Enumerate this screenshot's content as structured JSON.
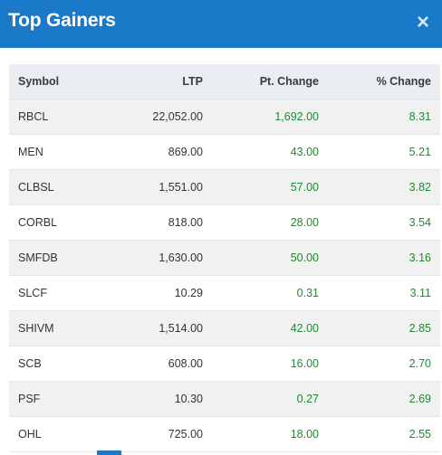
{
  "header": {
    "title": "Top Gainers",
    "close_label": "×"
  },
  "table": {
    "columns": [
      "Symbol",
      "LTP",
      "Pt. Change",
      "% Change"
    ],
    "rows": [
      {
        "symbol": "RBCL",
        "ltp": "22,052.00",
        "pt_change": "1,692.00",
        "pct_change": "8.31"
      },
      {
        "symbol": "MEN",
        "ltp": "869.00",
        "pt_change": "43.00",
        "pct_change": "5.21"
      },
      {
        "symbol": "CLBSL",
        "ltp": "1,551.00",
        "pt_change": "57.00",
        "pct_change": "3.82"
      },
      {
        "symbol": "CORBL",
        "ltp": "818.00",
        "pt_change": "28.00",
        "pct_change": "3.54"
      },
      {
        "symbol": "SMFDB",
        "ltp": "1,630.00",
        "pt_change": "50.00",
        "pct_change": "3.16"
      },
      {
        "symbol": "SLCF",
        "ltp": "10.29",
        "pt_change": "0.31",
        "pct_change": "3.11"
      },
      {
        "symbol": "SHIVM",
        "ltp": "1,514.00",
        "pt_change": "42.00",
        "pct_change": "2.85"
      },
      {
        "symbol": "SCB",
        "ltp": "608.00",
        "pt_change": "16.00",
        "pct_change": "2.70"
      },
      {
        "symbol": "PSF",
        "ltp": "10.30",
        "pt_change": "0.27",
        "pct_change": "2.69"
      },
      {
        "symbol": "OHL",
        "ltp": "725.00",
        "pt_change": "18.00",
        "pct_change": "2.55"
      }
    ]
  },
  "colors": {
    "header_bg": "#1a79c9",
    "positive": "#1e8b2f"
  },
  "icons": {
    "close": "close-icon"
  }
}
